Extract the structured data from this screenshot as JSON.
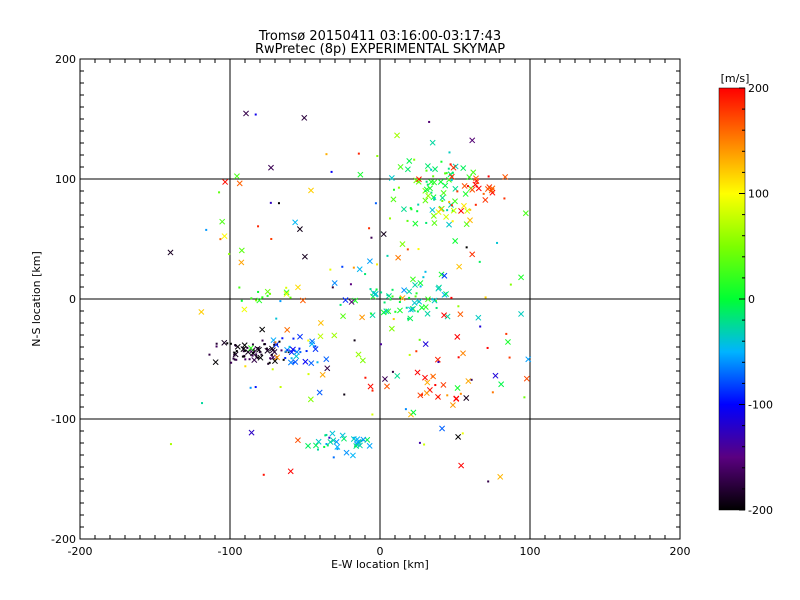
{
  "chart_data": {
    "type": "scatter",
    "title": "Tromsø 20150411 03:16:00-03:17:43",
    "subtitle": "RwPretec (8p) EXPERIMENTAL SKYMAP",
    "xlabel": "E-W location [km]",
    "ylabel": "N-S location [km]",
    "xlim": [
      -200,
      200
    ],
    "ylim": [
      -200,
      200
    ],
    "x_ticks": [
      "-200",
      "-100",
      "0",
      "100",
      "200"
    ],
    "y_ticks": [
      "-200",
      "-100",
      "0",
      "100",
      "200"
    ],
    "grid_lines": [
      -100,
      0,
      100
    ],
    "colorbar": {
      "label": "[m/s]",
      "range": [
        -200,
        200
      ],
      "ticks": [
        "-200",
        "-100",
        "0",
        "100",
        "200"
      ],
      "colormap": "rainbow (black-purple-blue-cyan-green-yellow-red)"
    },
    "markers": [
      "x (meteor echoes)",
      "dot (meteor echoes)"
    ],
    "clusters": [
      {
        "region": "west",
        "x_center": -85,
        "y_center": -45,
        "x_spread": 12,
        "y_spread": 5,
        "velocity_range": [
          -210,
          -160
        ],
        "count": 70,
        "marker": "dot"
      },
      {
        "region": "west-cyan",
        "x_center": -58,
        "y_center": -45,
        "x_spread": 8,
        "y_spread": 8,
        "velocity_range": [
          -110,
          -40
        ],
        "count": 28
      },
      {
        "region": "west-green",
        "x_center": -80,
        "y_center": 3,
        "x_spread": 15,
        "y_spread": 3,
        "velocity_range": [
          -10,
          60
        ],
        "count": 12
      },
      {
        "region": "center",
        "x_center": 18,
        "y_center": -2,
        "x_spread": 15,
        "y_spread": 10,
        "velocity_range": [
          -60,
          40
        ],
        "count": 60
      },
      {
        "region": "north-east",
        "x_center": 38,
        "y_center": 88,
        "x_spread": 12,
        "y_spread": 20,
        "velocity_range": [
          -40,
          60
        ],
        "count": 65
      },
      {
        "region": "north-east-red",
        "x_center": 67,
        "y_center": 92,
        "x_spread": 7,
        "y_spread": 8,
        "velocity_range": [
          160,
          210
        ],
        "count": 24
      },
      {
        "region": "north-east-orange",
        "x_center": 50,
        "y_center": 72,
        "x_spread": 7,
        "y_spread": 7,
        "velocity_range": [
          70,
          140
        ],
        "count": 10
      },
      {
        "region": "south-east",
        "x_center": 35,
        "y_center": -75,
        "x_spread": 15,
        "y_spread": 12,
        "velocity_range": [
          130,
          210
        ],
        "count": 25
      },
      {
        "region": "south",
        "x_center": -25,
        "y_center": -120,
        "x_spread": 10,
        "y_spread": 5,
        "velocity_range": [
          -70,
          0
        ],
        "count": 35
      },
      {
        "region": "scattered",
        "x_center": 0,
        "y_center": 0,
        "x_spread": 75,
        "y_spread": 85,
        "velocity_range": [
          -210,
          210
        ],
        "count": 200
      }
    ]
  }
}
